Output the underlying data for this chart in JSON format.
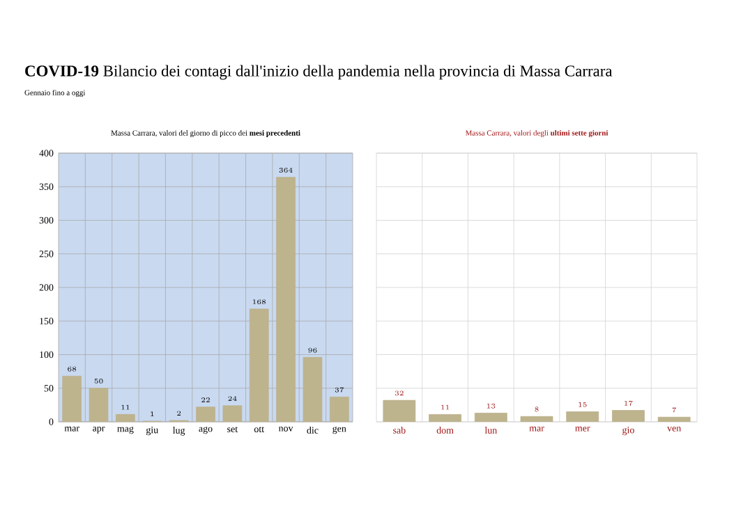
{
  "chart_data": [
    {
      "type": "bar",
      "title": "Massa Carrara, valori del giorno di picco dei **mesi precedenti**",
      "annotations": [
        "**COVID-19** Bilancio dei contagi dall'inizio della pandemia nella provincia di Massa Carrara",
        "Gennaio fino a oggi"
      ],
      "categories": [
        "mar",
        "apr",
        "mag",
        "giu",
        "lug",
        "ago",
        "set",
        "ott",
        "nov",
        "dic",
        "gen"
      ],
      "values": [
        68,
        50,
        11,
        1,
        2,
        22,
        24,
        168,
        364,
        96,
        37
      ],
      "color": "#bdb38d",
      "ylim": [
        0,
        400
      ],
      "yticks": [
        0,
        50,
        100,
        150,
        200,
        250,
        300,
        350,
        400
      ],
      "grid": true,
      "data_labels": true
    },
    {
      "type": "bar",
      "title": "Massa Carrara, valori degli **ultimi sette giorni**",
      "categories": [
        "sab",
        "dom",
        "lun",
        "mar",
        "mer",
        "gio",
        "ven"
      ],
      "values": [
        32,
        11,
        13,
        8,
        15,
        17,
        7
      ],
      "color": "#bdb38d",
      "ylim": [
        0,
        400
      ],
      "yticks": [
        0,
        50,
        100,
        150,
        200,
        250,
        300,
        350,
        400
      ],
      "grid": true,
      "data_labels": true,
      "tick_labels": "x"
    }
  ]
}
